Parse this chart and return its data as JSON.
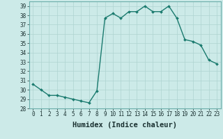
{
  "x": [
    0,
    1,
    2,
    3,
    4,
    5,
    6,
    7,
    8,
    9,
    10,
    11,
    12,
    13,
    14,
    15,
    16,
    17,
    18,
    19,
    20,
    21,
    22,
    23
  ],
  "y": [
    30.6,
    30.0,
    29.4,
    29.4,
    29.2,
    29.0,
    28.8,
    28.6,
    29.9,
    37.7,
    38.2,
    37.7,
    38.4,
    38.4,
    39.0,
    38.4,
    38.4,
    39.0,
    37.7,
    35.4,
    35.2,
    34.8,
    33.2,
    32.8
  ],
  "line_color": "#1a7a6e",
  "marker": "D",
  "marker_size": 2.0,
  "bg_color": "#cceae8",
  "grid_color": "#aed4d0",
  "xlabel": "Humidex (Indice chaleur)",
  "ylim": [
    28,
    39.5
  ],
  "xlim": [
    -0.5,
    23.5
  ],
  "yticks": [
    28,
    29,
    30,
    31,
    32,
    33,
    34,
    35,
    36,
    37,
    38,
    39
  ],
  "xticks": [
    0,
    1,
    2,
    3,
    4,
    5,
    6,
    7,
    8,
    9,
    10,
    11,
    12,
    13,
    14,
    15,
    16,
    17,
    18,
    19,
    20,
    21,
    22,
    23
  ],
  "xtick_labels": [
    "0",
    "1",
    "2",
    "3",
    "4",
    "5",
    "6",
    "7",
    "8",
    "9",
    "10",
    "11",
    "12",
    "13",
    "14",
    "15",
    "16",
    "17",
    "18",
    "19",
    "20",
    "21",
    "22",
    "23"
  ],
  "tick_fontsize": 5.5,
  "xlabel_fontsize": 7.5,
  "linewidth": 1.0
}
